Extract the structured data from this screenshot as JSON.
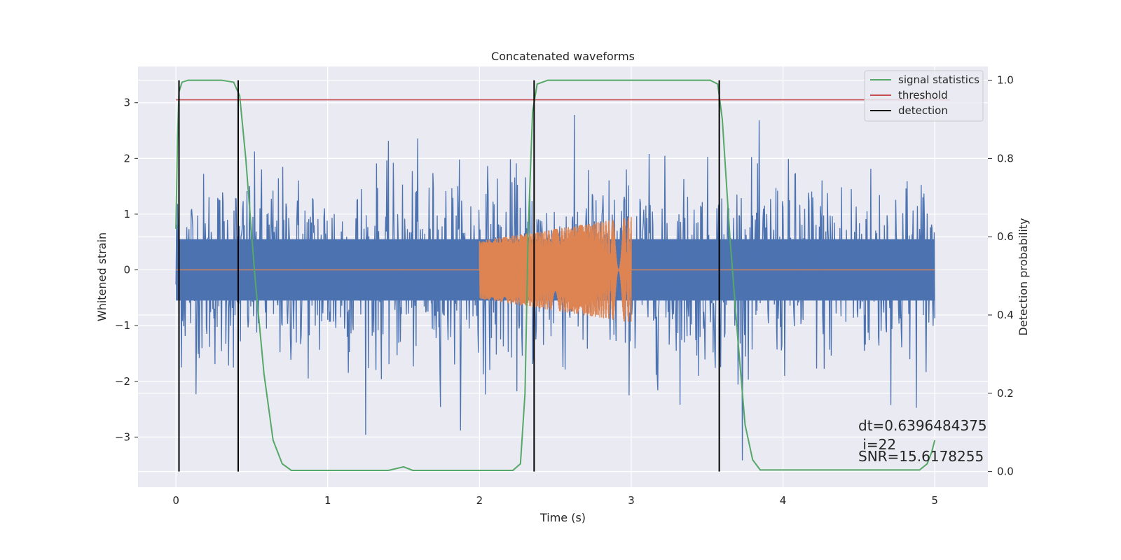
{
  "chart_data": {
    "type": "line",
    "title": "Concatenated waveforms",
    "xlabel": "Time (s)",
    "ylabel": "Whitened strain",
    "y2label": "Detection probability",
    "xlim": [
      -0.25,
      5.35
    ],
    "ylim": [
      -3.9,
      3.65
    ],
    "y2lim": [
      -0.04,
      1.035
    ],
    "xticks": [
      0,
      1,
      2,
      3,
      4,
      5
    ],
    "yticks": [
      -3,
      -2,
      -1,
      0,
      1,
      2,
      3
    ],
    "y2ticks": [
      0.0,
      0.2,
      0.4,
      0.6,
      0.8,
      1.0
    ],
    "xtick_labels": [
      "0",
      "1",
      "2",
      "3",
      "4",
      "5"
    ],
    "ytick_labels": [
      "−3",
      "−2",
      "−1",
      "0",
      "1",
      "2",
      "3"
    ],
    "y2tick_labels": [
      "0.0",
      "0.2",
      "0.4",
      "0.6",
      "0.8",
      "1.0"
    ],
    "grid": true,
    "legend_position": "top-right",
    "series": [
      {
        "name": "",
        "kind": "noise",
        "color": "#4c72b0",
        "x_range": [
          0,
          5
        ],
        "band": 0.55,
        "envelope": 2.6,
        "min": -3.6,
        "max": 3.35
      },
      {
        "name": "",
        "kind": "chirp",
        "color": "#dd8452",
        "x_range": [
          0,
          5
        ],
        "chirp_start": 2.0,
        "chirp_end": 3.0,
        "amp_start": 0.52,
        "amp_end": 0.95
      },
      {
        "name": "signal statistics",
        "kind": "probability",
        "axis": "y2",
        "color": "#55a868",
        "points": [
          [
            0.0,
            0.62
          ],
          [
            0.01,
            0.85
          ],
          [
            0.02,
            0.97
          ],
          [
            0.04,
            0.995
          ],
          [
            0.08,
            1.0
          ],
          [
            0.3,
            1.0
          ],
          [
            0.38,
            0.995
          ],
          [
            0.42,
            0.96
          ],
          [
            0.46,
            0.8
          ],
          [
            0.52,
            0.5
          ],
          [
            0.58,
            0.25
          ],
          [
            0.64,
            0.08
          ],
          [
            0.7,
            0.02
          ],
          [
            0.76,
            0.003
          ],
          [
            1.4,
            0.003
          ],
          [
            1.5,
            0.012
          ],
          [
            1.56,
            0.003
          ],
          [
            2.22,
            0.003
          ],
          [
            2.27,
            0.02
          ],
          [
            2.3,
            0.2
          ],
          [
            2.32,
            0.6
          ],
          [
            2.35,
            0.92
          ],
          [
            2.38,
            0.99
          ],
          [
            2.45,
            1.0
          ],
          [
            3.52,
            1.0
          ],
          [
            3.57,
            0.99
          ],
          [
            3.6,
            0.9
          ],
          [
            3.65,
            0.6
          ],
          [
            3.7,
            0.35
          ],
          [
            3.75,
            0.12
          ],
          [
            3.8,
            0.03
          ],
          [
            3.85,
            0.004
          ],
          [
            4.9,
            0.004
          ],
          [
            4.95,
            0.02
          ],
          [
            4.98,
            0.05
          ],
          [
            5.0,
            0.08
          ]
        ]
      },
      {
        "name": "threshold",
        "kind": "hline",
        "axis": "y2",
        "color": "#c44e52",
        "y": 0.95,
        "x_range": [
          0,
          5.1
        ]
      },
      {
        "name": "detection",
        "kind": "vlines",
        "axis": "y2",
        "color": "#000000",
        "x": [
          0.02,
          0.41,
          2.36,
          3.58
        ],
        "y_range": [
          0,
          1
        ]
      }
    ],
    "annotations": [
      "dt=0.6396484375",
      " i=22",
      "SNR=15.6178255"
    ]
  }
}
